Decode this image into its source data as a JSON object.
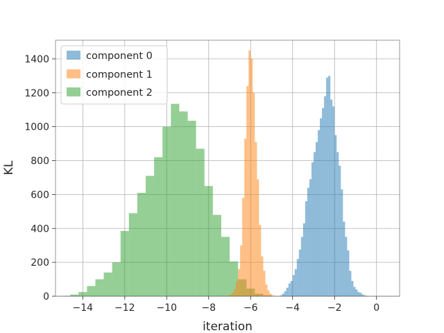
{
  "chart_data": {
    "type": "histogram",
    "title": "",
    "xlabel": "iteration",
    "ylabel": "KL",
    "xlim": [
      -15.3,
      1.1
    ],
    "ylim": [
      0,
      1510
    ],
    "xticks": [
      -14,
      -12,
      -10,
      -8,
      -6,
      -4,
      -2,
      0
    ],
    "xtick_labels": [
      "−14",
      "−12",
      "−10",
      "−8",
      "−6",
      "−4",
      "−2",
      "0"
    ],
    "yticks": [
      0,
      200,
      400,
      600,
      800,
      1000,
      1200,
      1400
    ],
    "ytick_labels": [
      "0",
      "200",
      "400",
      "600",
      "800",
      "1000",
      "1200",
      "1400"
    ],
    "grid": true,
    "legend_position": "top-left",
    "series": [
      {
        "name": "component 2",
        "color": "#2ca02c",
        "opacity": 0.5,
        "bin_width": 0.4,
        "bins": [
          [
            -15.0,
            2
          ],
          [
            -14.6,
            10
          ],
          [
            -14.2,
            25
          ],
          [
            -13.8,
            60
          ],
          [
            -13.4,
            100
          ],
          [
            -13.0,
            140
          ],
          [
            -12.6,
            200
          ],
          [
            -12.2,
            385
          ],
          [
            -11.8,
            490
          ],
          [
            -11.4,
            610
          ],
          [
            -11.0,
            710
          ],
          [
            -10.6,
            820
          ],
          [
            -10.2,
            1000
          ],
          [
            -9.8,
            1135
          ],
          [
            -9.4,
            1090
          ],
          [
            -9.0,
            1035
          ],
          [
            -8.6,
            870
          ],
          [
            -8.2,
            650
          ],
          [
            -7.8,
            480
          ],
          [
            -7.4,
            350
          ],
          [
            -7.0,
            205
          ],
          [
            -6.6,
            100
          ],
          [
            -6.2,
            45
          ],
          [
            -5.8,
            15
          ],
          [
            -5.4,
            5
          ]
        ]
      },
      {
        "name": "component 1",
        "color": "#ff7f0e",
        "opacity": 0.5,
        "bin_width": 0.1,
        "bins": [
          [
            -7.2,
            2
          ],
          [
            -7.1,
            4
          ],
          [
            -7.0,
            10
          ],
          [
            -6.9,
            20
          ],
          [
            -6.8,
            40
          ],
          [
            -6.7,
            90
          ],
          [
            -6.6,
            160
          ],
          [
            -6.5,
            300
          ],
          [
            -6.4,
            580
          ],
          [
            -6.3,
            930
          ],
          [
            -6.2,
            1240
          ],
          [
            -6.1,
            1450
          ],
          [
            -6.0,
            1400
          ],
          [
            -5.9,
            1200
          ],
          [
            -5.8,
            910
          ],
          [
            -5.7,
            690
          ],
          [
            -5.6,
            420
          ],
          [
            -5.5,
            235
          ],
          [
            -5.4,
            150
          ],
          [
            -5.3,
            70
          ],
          [
            -5.2,
            35
          ],
          [
            -5.1,
            15
          ],
          [
            -5.0,
            6
          ],
          [
            -4.9,
            2
          ]
        ]
      },
      {
        "name": "component 0",
        "color": "#1f77b4",
        "opacity": 0.5,
        "bin_width": 0.1,
        "bins": [
          [
            -4.6,
            5
          ],
          [
            -4.5,
            15
          ],
          [
            -4.4,
            30
          ],
          [
            -4.3,
            50
          ],
          [
            -4.2,
            75
          ],
          [
            -4.1,
            90
          ],
          [
            -4.0,
            125
          ],
          [
            -3.9,
            160
          ],
          [
            -3.8,
            220
          ],
          [
            -3.7,
            275
          ],
          [
            -3.6,
            350
          ],
          [
            -3.5,
            430
          ],
          [
            -3.4,
            560
          ],
          [
            -3.3,
            640
          ],
          [
            -3.2,
            690
          ],
          [
            -3.1,
            790
          ],
          [
            -3.0,
            850
          ],
          [
            -2.9,
            910
          ],
          [
            -2.8,
            980
          ],
          [
            -2.7,
            1050
          ],
          [
            -2.6,
            1110
          ],
          [
            -2.5,
            1180
          ],
          [
            -2.4,
            1290
          ],
          [
            -2.3,
            1300
          ],
          [
            -2.2,
            1160
          ],
          [
            -2.1,
            1120
          ],
          [
            -2.0,
            950
          ],
          [
            -1.9,
            850
          ],
          [
            -1.8,
            770
          ],
          [
            -1.7,
            630
          ],
          [
            -1.6,
            440
          ],
          [
            -1.5,
            350
          ],
          [
            -1.4,
            270
          ],
          [
            -1.3,
            150
          ],
          [
            -1.2,
            90
          ],
          [
            -1.1,
            55
          ],
          [
            -1.0,
            40
          ],
          [
            -0.9,
            25
          ],
          [
            -0.8,
            20
          ],
          [
            -0.7,
            10
          ],
          [
            -0.6,
            5
          ],
          [
            -0.5,
            2
          ]
        ]
      }
    ],
    "legend": [
      {
        "label": "component 0",
        "color": "#1f77b4"
      },
      {
        "label": "component 1",
        "color": "#ff7f0e"
      },
      {
        "label": "component 2",
        "color": "#2ca02c"
      }
    ]
  }
}
